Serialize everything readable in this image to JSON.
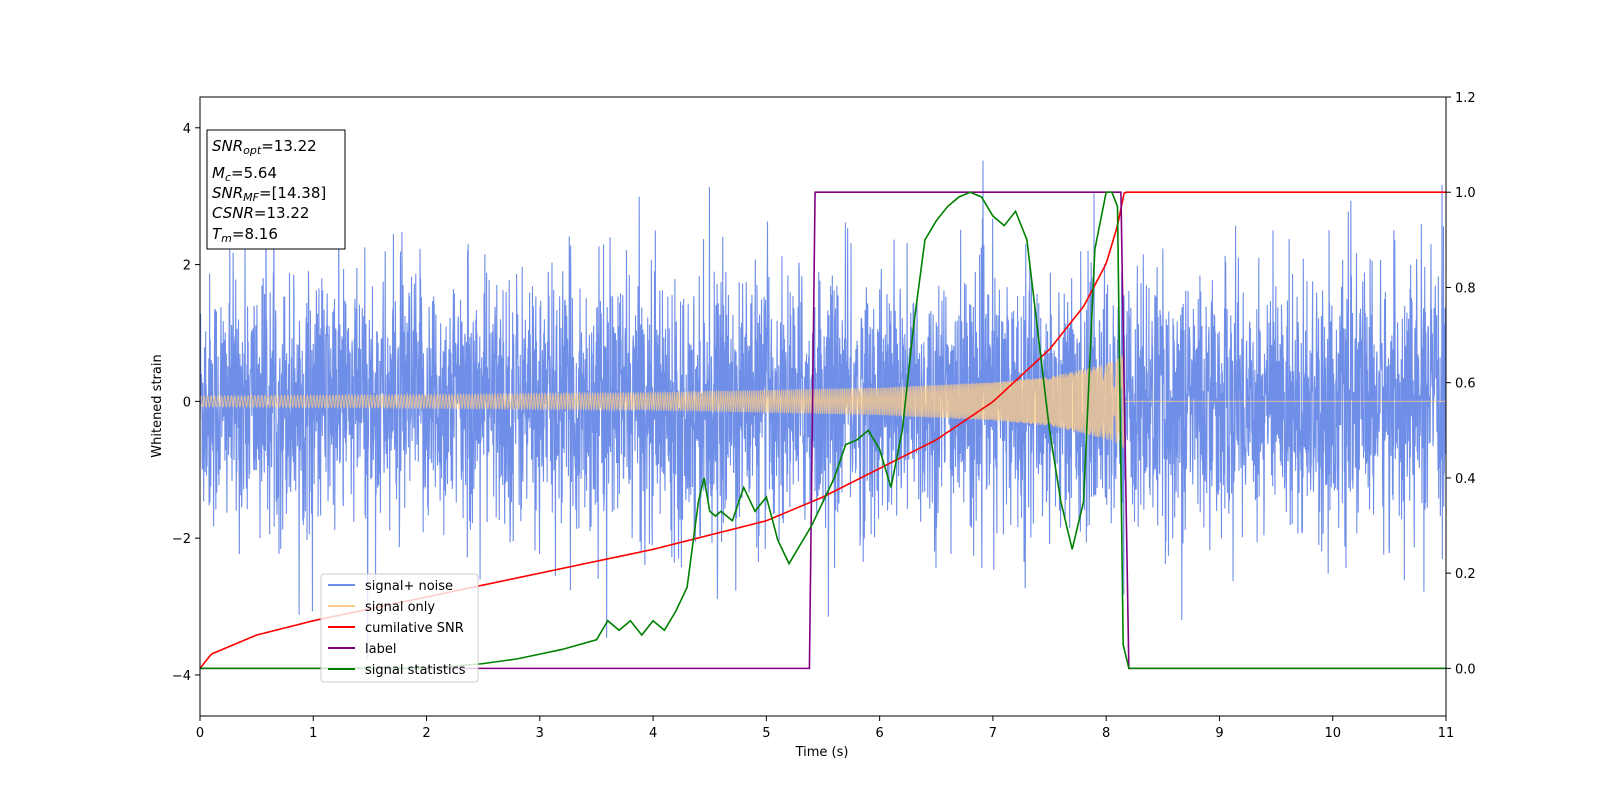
{
  "chart_data": {
    "type": "line",
    "xlabel": "Time (s)",
    "ylabel": "Whitened strain",
    "xlim": [
      0,
      11
    ],
    "ylim_left": [
      -4.6,
      4.45
    ],
    "ylim_right": [
      -0.1,
      1.2
    ],
    "x_ticks": [
      "0",
      "1",
      "2",
      "3",
      "4",
      "5",
      "6",
      "7",
      "8",
      "9",
      "10",
      "11"
    ],
    "y_left_ticks": [
      "−4",
      "−2",
      "0",
      "2",
      "4"
    ],
    "y_right_ticks": [
      "0.0",
      "0.2",
      "0.4",
      "0.6",
      "0.8",
      "1.0",
      "1.2"
    ],
    "annotation": {
      "lines": [
        {
          "base": "SNR",
          "sub": "opt",
          "value": "=13.22"
        },
        {
          "base": "M",
          "sub": "c",
          "value": "=5.64"
        },
        {
          "base": "SNR",
          "sub": "MF",
          "value": "=[14.38]"
        },
        {
          "base": "CSNR",
          "sub": "",
          "value": "=13.22"
        },
        {
          "base": "T",
          "sub": "m",
          "value": "=8.16"
        }
      ]
    },
    "legend": {
      "position": "lower-left",
      "entries": [
        {
          "label": "signal+ noise",
          "color": "#6f8ee8"
        },
        {
          "label": "signal only",
          "color": "#ffcc88"
        },
        {
          "label": "cumilative SNR",
          "color": "#ff0000"
        },
        {
          "label": "label",
          "color": "#800080"
        },
        {
          "label": "signal statistics",
          "color": "#008000"
        }
      ]
    },
    "series": [
      {
        "name": "signal+ noise",
        "axis": "left",
        "color": "#6f8ee8",
        "kind": "noise",
        "sigma": 1.0,
        "x_range": [
          0,
          11
        ]
      },
      {
        "name": "signal only",
        "axis": "left",
        "color": "#ffcc88",
        "kind": "chirp",
        "amplitude_envelope": {
          "x": [
            0,
            2,
            4,
            6,
            7,
            7.5,
            8,
            8.1,
            8.16
          ],
          "y": [
            0.08,
            0.1,
            0.13,
            0.2,
            0.28,
            0.36,
            0.55,
            0.62,
            0.7
          ]
        },
        "end_time": 8.16
      },
      {
        "name": "cumilative SNR",
        "axis": "right",
        "color": "#ff0000",
        "x": [
          0,
          0.1,
          0.5,
          1,
          2,
          3,
          4,
          5,
          5.5,
          6,
          6.5,
          7,
          7.5,
          7.8,
          8.0,
          8.1,
          8.16,
          8.17,
          11
        ],
        "y": [
          0.0,
          0.03,
          0.07,
          0.1,
          0.15,
          0.2,
          0.25,
          0.31,
          0.36,
          0.42,
          0.48,
          0.56,
          0.67,
          0.76,
          0.85,
          0.93,
          1.0,
          1.0,
          1.0
        ]
      },
      {
        "name": "label",
        "axis": "right",
        "color": "#800080",
        "x": [
          0,
          5.38,
          5.43,
          8.13,
          8.2,
          11
        ],
        "y": [
          0.0,
          0.0,
          1.0,
          1.0,
          0.0,
          0.0
        ]
      },
      {
        "name": "signal statistics",
        "axis": "right",
        "color": "#008000",
        "x": [
          0,
          2.0,
          2.5,
          2.8,
          3.0,
          3.2,
          3.5,
          3.6,
          3.7,
          3.8,
          3.9,
          4.0,
          4.1,
          4.2,
          4.3,
          4.4,
          4.45,
          4.5,
          4.55,
          4.6,
          4.7,
          4.8,
          4.9,
          5.0,
          5.1,
          5.2,
          5.3,
          5.4,
          5.5,
          5.6,
          5.7,
          5.8,
          5.9,
          6.0,
          6.1,
          6.2,
          6.3,
          6.4,
          6.5,
          6.6,
          6.7,
          6.8,
          6.9,
          7.0,
          7.1,
          7.2,
          7.3,
          7.4,
          7.5,
          7.6,
          7.7,
          7.8,
          7.9,
          8.0,
          8.05,
          8.1,
          8.15,
          8.2,
          11
        ],
        "y": [
          0.0,
          0.0,
          0.01,
          0.02,
          0.03,
          0.04,
          0.06,
          0.1,
          0.08,
          0.1,
          0.07,
          0.1,
          0.08,
          0.12,
          0.17,
          0.35,
          0.4,
          0.33,
          0.32,
          0.33,
          0.31,
          0.38,
          0.33,
          0.36,
          0.27,
          0.22,
          0.26,
          0.3,
          0.35,
          0.4,
          0.47,
          0.48,
          0.5,
          0.46,
          0.38,
          0.5,
          0.72,
          0.9,
          0.94,
          0.97,
          0.99,
          1.0,
          0.99,
          0.95,
          0.93,
          0.96,
          0.9,
          0.7,
          0.5,
          0.35,
          0.25,
          0.35,
          0.88,
          1.0,
          1.0,
          0.97,
          0.05,
          0.0,
          0.0
        ]
      }
    ]
  }
}
